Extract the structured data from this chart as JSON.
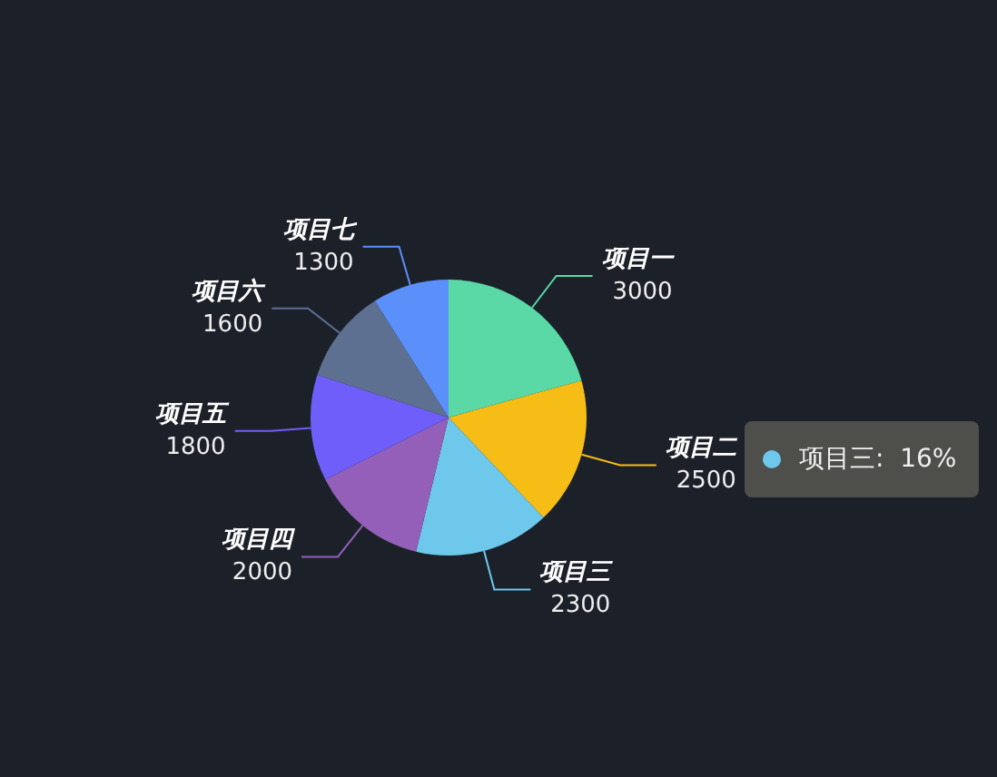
{
  "chart_data": {
    "type": "pie",
    "categories": [
      "项目一",
      "项目二",
      "项目三",
      "项目四",
      "项目五",
      "项目六",
      "项目七"
    ],
    "values": [
      3000,
      2500,
      2300,
      2000,
      1800,
      1600,
      1300
    ],
    "colors": [
      "#5ad8a6",
      "#f6bd16",
      "#6dc8ec",
      "#945fb9",
      "#6f5ef9",
      "#5d7092",
      "#5b8ff9"
    ],
    "data_labels": true,
    "annotations": [
      "项目三:  16%"
    ]
  }
}
